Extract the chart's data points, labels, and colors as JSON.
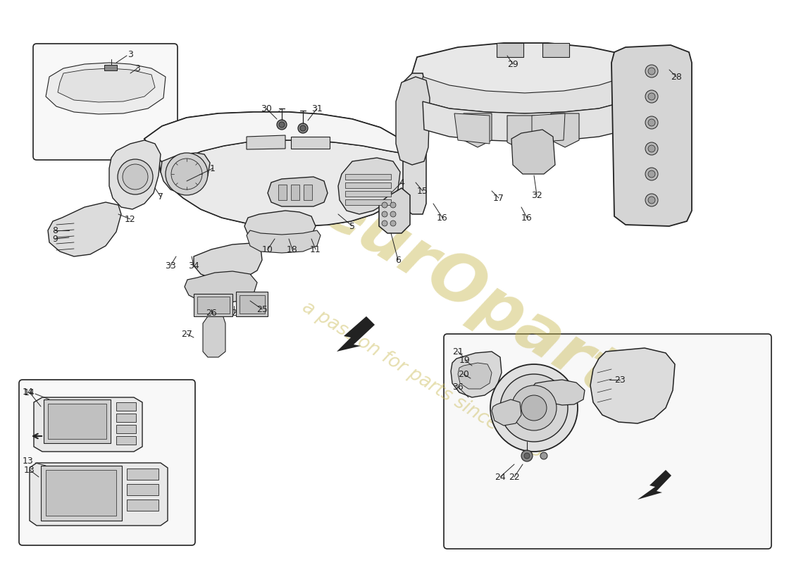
{
  "bg_color": "#ffffff",
  "line_color": "#222222",
  "wm_color1": "#c8b850",
  "wm_text1": "eurOparts",
  "wm_text2": "a passion for parts since 1985",
  "fig_w": 11.0,
  "fig_h": 8.0,
  "dpi": 100
}
